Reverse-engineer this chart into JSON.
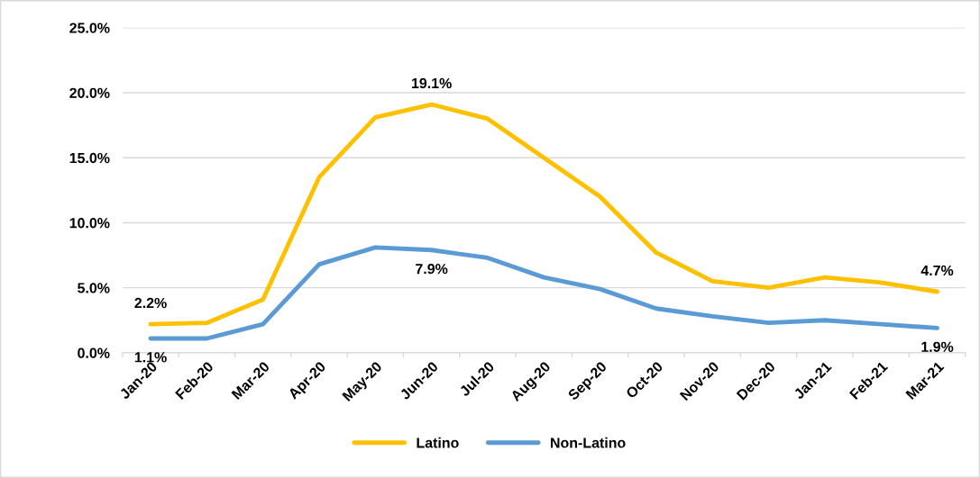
{
  "chart_data": {
    "type": "line",
    "categories": [
      "Jan-20",
      "Feb-20",
      "Mar-20",
      "Apr-20",
      "May-20",
      "Jun-20",
      "Jul-20",
      "Aug-20",
      "Sep-20",
      "Oct-20",
      "Nov-20",
      "Dec-20",
      "Jan-21",
      "Feb-21",
      "Mar-21"
    ],
    "series": [
      {
        "name": "Latino",
        "color": "#ffc000",
        "values": [
          2.2,
          2.3,
          4.1,
          13.5,
          18.1,
          19.1,
          18.0,
          15.0,
          12.0,
          7.7,
          5.5,
          5.0,
          5.8,
          5.4,
          4.7
        ],
        "value_labels": [
          "2.2%",
          null,
          null,
          null,
          null,
          "19.1%",
          null,
          null,
          null,
          null,
          null,
          null,
          null,
          null,
          "4.7%"
        ]
      },
      {
        "name": "Non-Latino",
        "color": "#5b9bd5",
        "values": [
          1.1,
          1.1,
          2.2,
          6.8,
          8.1,
          7.9,
          7.3,
          5.8,
          4.9,
          3.4,
          2.8,
          2.3,
          2.5,
          2.2,
          1.9
        ],
        "value_labels": [
          "1.1%",
          null,
          null,
          null,
          null,
          "7.9%",
          null,
          null,
          null,
          null,
          null,
          null,
          null,
          null,
          "1.9%"
        ]
      }
    ],
    "ylim": [
      0,
      25
    ],
    "yticks": [
      {
        "value": 0,
        "label": "0.0%"
      },
      {
        "value": 5,
        "label": "5.0%"
      },
      {
        "value": 10,
        "label": "10.0%"
      },
      {
        "value": 15,
        "label": "15.0%"
      },
      {
        "value": 20,
        "label": "20.0%"
      },
      {
        "value": 25,
        "label": "25.0%"
      }
    ],
    "grid": "y",
    "legend": "bottom",
    "marker": "none",
    "line_style": "solid"
  }
}
